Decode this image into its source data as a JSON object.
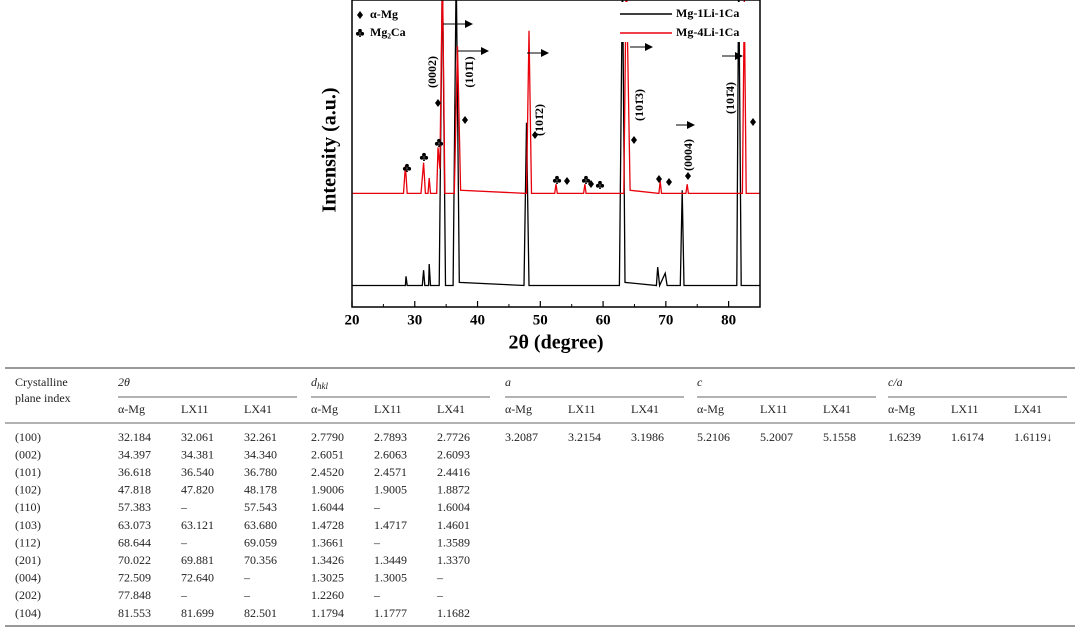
{
  "chart_data": {
    "type": "line",
    "xlabel": "2θ (degree)",
    "ylabel": "Intensity (a.u.)",
    "xlim": [
      20,
      85
    ],
    "xticks": [
      20,
      30,
      40,
      50,
      60,
      70,
      80
    ],
    "ylim": [
      0,
      100
    ],
    "legend": "upper right",
    "series": [
      {
        "name": "Mg-1Li-1Ca",
        "color": "#000000",
        "x": [
          20,
          28.5,
          28.6,
          28.8,
          31.2,
          31.4,
          31.6,
          32.2,
          32.3,
          32.5,
          33.9,
          34.4,
          34.9,
          36.1,
          36.6,
          37.1,
          47.4,
          47.8,
          48.2,
          62.6,
          63.1,
          63.5,
          68.5,
          68.7,
          69,
          69.9,
          70.2,
          72.3,
          72.6,
          72.9,
          81.3,
          81.6,
          82,
          85
        ],
        "values": [
          7,
          7,
          10,
          7,
          7,
          12,
          7,
          7,
          14,
          7,
          7,
          110,
          7,
          7,
          110,
          8,
          7,
          60,
          7,
          7,
          110,
          8,
          7,
          13,
          7,
          11,
          7,
          7,
          38,
          7,
          7,
          110,
          7,
          7
        ]
      },
      {
        "name": "Mg-4Li-1Ca",
        "color": "#e8000b",
        "x": [
          20,
          28.2,
          28.5,
          28.8,
          31,
          31.4,
          31.7,
          32.1,
          32.3,
          32.5,
          33.5,
          33.7,
          34,
          34.4,
          34.8,
          36.3,
          36.8,
          37.3,
          47.8,
          48.2,
          48.6,
          52.3,
          52.5,
          52.7,
          56.9,
          57.1,
          57.3,
          63.3,
          63.7,
          64.3,
          68.9,
          69.1,
          69.3,
          73.2,
          73.4,
          73.6,
          82.2,
          82.5,
          82.8,
          85
        ],
        "values": [
          37,
          37,
          46,
          37,
          37,
          47,
          37,
          37,
          42,
          37,
          37,
          52,
          45,
          110,
          37,
          37,
          85,
          38,
          37,
          90,
          37,
          37,
          40,
          37,
          37,
          40,
          37,
          37,
          110,
          38,
          37,
          41,
          37,
          37,
          40,
          37,
          37,
          100,
          37,
          37
        ]
      }
    ],
    "phase_legend": [
      "α-Mg",
      "Mg₂Ca"
    ],
    "annotations": [
      "(0002)",
      "(101̄1)",
      "(101̄2)",
      "(101̄3)",
      "(0004)",
      "(101̄4)"
    ]
  },
  "table": {
    "row_header": [
      "Crystalline",
      "plane index"
    ],
    "groups": [
      {
        "label": "2θ"
      },
      {
        "label": "d",
        "sub": "hkl"
      },
      {
        "label": "a"
      },
      {
        "label": "c"
      },
      {
        "label": "c/a"
      }
    ],
    "subheaders": [
      "α-Mg",
      "LX11",
      "LX41"
    ],
    "rows": [
      {
        "plane": "(100)",
        "cells": [
          [
            "32.184",
            "32.061",
            "32.261"
          ],
          [
            "2.7790",
            "2.7893",
            "2.7726"
          ],
          [
            "3.2087",
            "3.2154",
            "3.1986"
          ],
          [
            "5.2106",
            "5.2007",
            "5.1558"
          ],
          [
            "1.6239",
            "1.6174",
            "1.6119↓"
          ]
        ]
      },
      {
        "plane": "(002)",
        "cells": [
          [
            "34.397",
            "34.381",
            "34.340"
          ],
          [
            "2.6051",
            "2.6063",
            "2.6093"
          ]
        ]
      },
      {
        "plane": "(101)",
        "cells": [
          [
            "36.618",
            "36.540",
            "36.780"
          ],
          [
            "2.4520",
            "2.4571",
            "2.4416"
          ]
        ]
      },
      {
        "plane": "(102)",
        "cells": [
          [
            "47.818",
            "47.820",
            "48.178"
          ],
          [
            "1.9006",
            "1.9005",
            "1.8872"
          ]
        ]
      },
      {
        "plane": "(110)",
        "cells": [
          [
            "57.383",
            "–",
            "57.543"
          ],
          [
            "1.6044",
            "–",
            "1.6004"
          ]
        ]
      },
      {
        "plane": "(103)",
        "cells": [
          [
            "63.073",
            "63.121",
            "63.680"
          ],
          [
            "1.4728",
            "1.4717",
            "1.4601"
          ]
        ]
      },
      {
        "plane": "(112)",
        "cells": [
          [
            "68.644",
            "–",
            "69.059"
          ],
          [
            "1.3661",
            "–",
            "1.3589"
          ]
        ]
      },
      {
        "plane": "(201)",
        "cells": [
          [
            "70.022",
            "69.881",
            "70.356"
          ],
          [
            "1.3426",
            "1.3449",
            "1.3370"
          ]
        ]
      },
      {
        "plane": "(004)",
        "cells": [
          [
            "72.509",
            "72.640",
            "–"
          ],
          [
            "1.3025",
            "1.3005",
            "–"
          ]
        ]
      },
      {
        "plane": "(202)",
        "cells": [
          [
            "77.848",
            "–",
            "–"
          ],
          [
            "1.2260",
            "–",
            "–"
          ]
        ]
      },
      {
        "plane": "(104)",
        "cells": [
          [
            "81.553",
            "81.699",
            "82.501"
          ],
          [
            "1.1794",
            "1.1777",
            "1.1682"
          ]
        ]
      }
    ]
  }
}
